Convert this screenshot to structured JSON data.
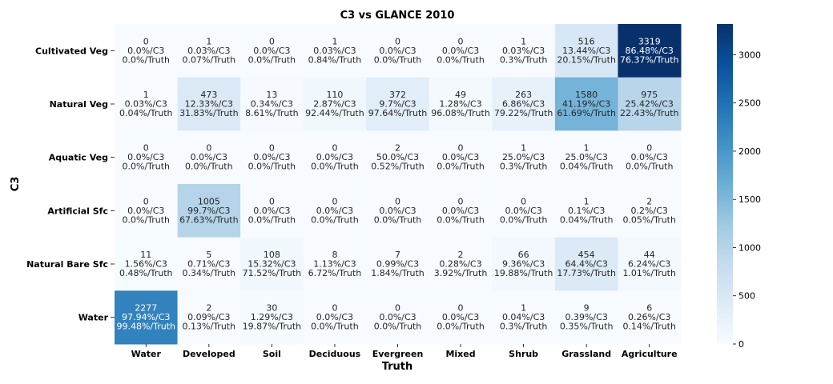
{
  "chart_data": {
    "type": "heatmap",
    "title": "C3 vs GLANCE 2010",
    "xlabel": "Truth",
    "ylabel": "C3",
    "x_categories": [
      "Water",
      "Developed",
      "Soil",
      "Deciduous",
      "Evergreen",
      "Mixed",
      "Shrub",
      "Grassland",
      "Agriculture"
    ],
    "y_categories": [
      "Cultivated Veg",
      "Natural Veg",
      "Aquatic Veg",
      "Artificial Sfc",
      "Natural Bare Sfc",
      "Water"
    ],
    "colorbar": {
      "min": 0,
      "max": 3319,
      "ticks": [
        0,
        500,
        1000,
        1500,
        2000,
        2500,
        3000
      ]
    },
    "values": [
      [
        0,
        1,
        0,
        1,
        0,
        0,
        1,
        516,
        3319
      ],
      [
        1,
        473,
        13,
        110,
        372,
        49,
        263,
        1580,
        975
      ],
      [
        0,
        0,
        0,
        0,
        2,
        0,
        1,
        1,
        0
      ],
      [
        0,
        1005,
        0,
        0,
        0,
        0,
        0,
        1,
        2
      ],
      [
        11,
        5,
        108,
        8,
        7,
        2,
        66,
        454,
        44
      ],
      [
        2277,
        2,
        30,
        0,
        0,
        0,
        1,
        9,
        6
      ]
    ],
    "pct_c3": [
      [
        "0.0%/C3",
        "0.03%/C3",
        "0.0%/C3",
        "0.03%/C3",
        "0.0%/C3",
        "0.0%/C3",
        "0.03%/C3",
        "13.44%/C3",
        "86.48%/C3"
      ],
      [
        "0.03%/C3",
        "12.33%/C3",
        "0.34%/C3",
        "2.87%/C3",
        "9.7%/C3",
        "1.28%/C3",
        "6.86%/C3",
        "41.19%/C3",
        "25.42%/C3"
      ],
      [
        "0.0%/C3",
        "0.0%/C3",
        "0.0%/C3",
        "0.0%/C3",
        "50.0%/C3",
        "0.0%/C3",
        "25.0%/C3",
        "25.0%/C3",
        "0.0%/C3"
      ],
      [
        "0.0%/C3",
        "99.7%/C3",
        "0.0%/C3",
        "0.0%/C3",
        "0.0%/C3",
        "0.0%/C3",
        "0.0%/C3",
        "0.1%/C3",
        "0.2%/C3"
      ],
      [
        "1.56%/C3",
        "0.71%/C3",
        "15.32%/C3",
        "1.13%/C3",
        "0.99%/C3",
        "0.28%/C3",
        "9.36%/C3",
        "64.4%/C3",
        "6.24%/C3"
      ],
      [
        "97.94%/C3",
        "0.09%/C3",
        "1.29%/C3",
        "0.0%/C3",
        "0.0%/C3",
        "0.0%/C3",
        "0.04%/C3",
        "0.39%/C3",
        "0.26%/C3"
      ]
    ],
    "pct_truth": [
      [
        "0.0%/Truth",
        "0.07%/Truth",
        "0.0%/Truth",
        "0.84%/Truth",
        "0.0%/Truth",
        "0.0%/Truth",
        "0.3%/Truth",
        "20.15%/Truth",
        "76.37%/Truth"
      ],
      [
        "0.04%/Truth",
        "31.83%/Truth",
        "8.61%/Truth",
        "92.44%/Truth",
        "97.64%/Truth",
        "96.08%/Truth",
        "79.22%/Truth",
        "61.69%/Truth",
        "22.43%/Truth"
      ],
      [
        "0.0%/Truth",
        "0.0%/Truth",
        "0.0%/Truth",
        "0.0%/Truth",
        "0.52%/Truth",
        "0.0%/Truth",
        "0.3%/Truth",
        "0.04%/Truth",
        "0.0%/Truth"
      ],
      [
        "0.0%/Truth",
        "67.63%/Truth",
        "0.0%/Truth",
        "0.0%/Truth",
        "0.0%/Truth",
        "0.0%/Truth",
        "0.0%/Truth",
        "0.04%/Truth",
        "0.05%/Truth"
      ],
      [
        "0.48%/Truth",
        "0.34%/Truth",
        "71.52%/Truth",
        "6.72%/Truth",
        "1.84%/Truth",
        "3.92%/Truth",
        "19.88%/Truth",
        "17.73%/Truth",
        "1.01%/Truth"
      ],
      [
        "99.48%/Truth",
        "0.13%/Truth",
        "19.87%/Truth",
        "0.0%/Truth",
        "0.0%/Truth",
        "0.0%/Truth",
        "0.3%/Truth",
        "0.35%/Truth",
        "0.14%/Truth"
      ]
    ]
  }
}
